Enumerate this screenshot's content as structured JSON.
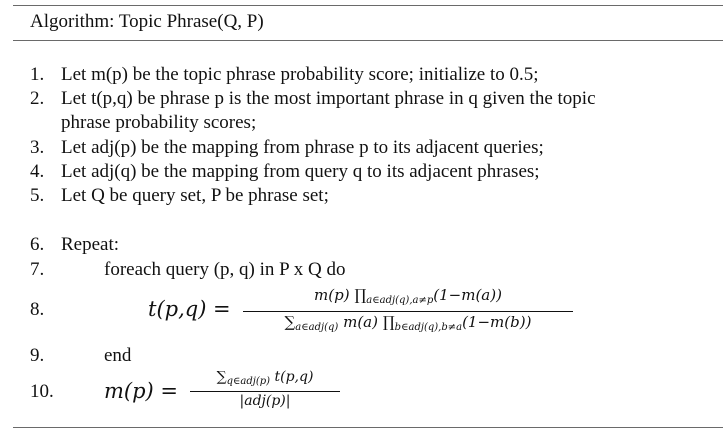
{
  "title": "Algorithm:  Topic Phrase(Q, P)",
  "steps": [
    {
      "n": "1.",
      "text": "Let m(p) be the topic phrase probability score; initialize to 0.5;"
    },
    {
      "n": "2.",
      "text": "Let t(p,q) be phrase p is the most important phrase in q given the topic",
      "cont": "phrase probability scores;"
    },
    {
      "n": "3.",
      "text": "Let adj(p) be the mapping from phrase p to its adjacent queries;"
    },
    {
      "n": "4.",
      "text": "Let adj(q) be the mapping from query q to its adjacent phrases;"
    },
    {
      "n": "5.",
      "text": "Let Q be query set, P be phrase set;"
    },
    {
      "n": "6.",
      "text": "Repeat:"
    },
    {
      "n": "7.",
      "text": "foreach query (p, q) in P x Q do"
    },
    {
      "n": "8.",
      "lhs": "t(p,q) =",
      "numerator_pre": "m(p) ∏",
      "numerator_sub": "a∈adj(q),a≠p",
      "numerator_post": "(1−m(a))",
      "denominator_pre": "∑",
      "denominator_sub": "a∈adj(q)",
      "denominator_mid": "m(a) ∏",
      "denominator_sub2": "b∈adj(q),b≠a",
      "denominator_post": "(1−m(b))"
    },
    {
      "n": "9.",
      "text": "end"
    },
    {
      "n": "10.",
      "lhs": "m(p) =",
      "numerator_pre": "∑",
      "numerator_sub": "q∈adj(p)",
      "numerator_post": "t(p,q)",
      "denominator": "|adj(p)|"
    }
  ]
}
